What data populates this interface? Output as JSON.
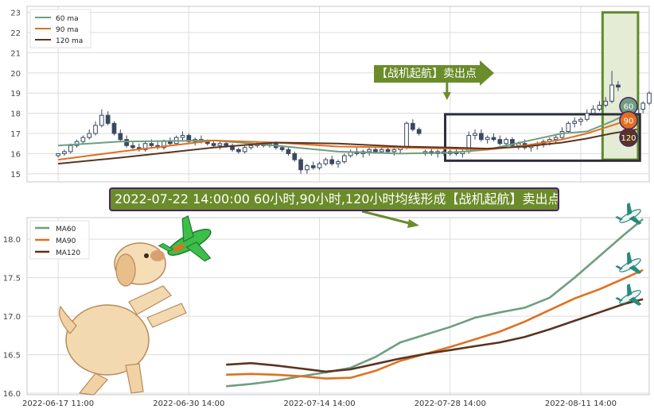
{
  "chart_data": [
    {
      "type": "candlestick",
      "xlim": [
        0,
        100
      ],
      "ylim": [
        14.6,
        23.3
      ],
      "yticks": [
        "15",
        "16",
        "17",
        "18",
        "19",
        "20",
        "21",
        "22",
        "23"
      ],
      "legend": {
        "placement": "top-left",
        "entries": [
          {
            "label": "60 ma",
            "color": "#6f9e80"
          },
          {
            "label": "90 ma",
            "color": "#e07020"
          },
          {
            "label": "120 ma",
            "color": "#5a3420"
          }
        ]
      },
      "candles": [
        [
          5,
          15.9,
          16.0,
          15.8,
          16.0
        ],
        [
          6,
          16.0,
          16.2,
          15.9,
          16.1
        ],
        [
          7,
          16.1,
          16.5,
          16.0,
          16.4
        ],
        [
          8,
          16.4,
          16.7,
          16.3,
          16.6
        ],
        [
          9,
          16.6,
          16.9,
          16.5,
          16.8
        ],
        [
          10,
          16.8,
          17.2,
          16.7,
          17.0
        ],
        [
          11,
          17.0,
          17.6,
          16.9,
          17.4
        ],
        [
          12,
          17.4,
          18.2,
          17.3,
          17.9
        ],
        [
          13,
          17.9,
          18.1,
          17.4,
          17.5
        ],
        [
          14,
          17.5,
          17.6,
          16.9,
          17.0
        ],
        [
          15,
          17.0,
          17.2,
          16.6,
          16.7
        ],
        [
          16,
          16.7,
          16.9,
          16.3,
          16.4
        ],
        [
          17,
          16.4,
          16.6,
          16.2,
          16.3
        ],
        [
          18,
          16.3,
          16.5,
          16.1,
          16.2
        ],
        [
          19,
          16.2,
          16.6,
          16.1,
          16.5
        ],
        [
          20,
          16.5,
          16.7,
          16.3,
          16.4
        ],
        [
          21,
          16.4,
          16.6,
          16.2,
          16.3
        ],
        [
          22,
          16.3,
          16.7,
          16.2,
          16.6
        ],
        [
          23,
          16.6,
          16.8,
          16.4,
          16.5
        ],
        [
          24,
          16.5,
          16.9,
          16.4,
          16.8
        ],
        [
          25,
          16.8,
          17.1,
          16.6,
          16.9
        ],
        [
          26,
          16.9,
          17.0,
          16.5,
          16.6
        ],
        [
          27,
          16.6,
          16.8,
          16.4,
          16.7
        ],
        [
          28,
          16.7,
          16.9,
          16.5,
          16.6
        ],
        [
          29,
          16.6,
          16.7,
          16.4,
          16.5
        ],
        [
          30,
          16.5,
          16.6,
          16.3,
          16.4
        ],
        [
          31,
          16.4,
          16.6,
          16.2,
          16.5
        ],
        [
          32,
          16.5,
          16.6,
          16.3,
          16.4
        ],
        [
          33,
          16.4,
          16.5,
          16.1,
          16.2
        ],
        [
          34,
          16.2,
          16.3,
          16.0,
          16.1
        ],
        [
          35,
          16.1,
          16.4,
          16.0,
          16.3
        ],
        [
          36,
          16.3,
          16.5,
          16.2,
          16.4
        ],
        [
          37,
          16.4,
          16.6,
          16.3,
          16.5
        ],
        [
          38,
          16.5,
          16.6,
          16.3,
          16.4
        ],
        [
          39,
          16.4,
          16.6,
          16.3,
          16.5
        ],
        [
          40,
          16.5,
          16.6,
          16.2,
          16.3
        ],
        [
          41,
          16.3,
          16.4,
          16.1,
          16.2
        ],
        [
          42,
          16.2,
          16.3,
          15.9,
          16.0
        ],
        [
          43,
          16.0,
          16.1,
          15.6,
          15.7
        ],
        [
          44,
          15.7,
          15.8,
          15.0,
          15.2
        ],
        [
          45,
          15.2,
          15.5,
          15.0,
          15.4
        ],
        [
          46,
          15.4,
          15.6,
          15.2,
          15.3
        ],
        [
          47,
          15.3,
          15.6,
          15.2,
          15.5
        ],
        [
          48,
          15.5,
          15.8,
          15.4,
          15.7
        ],
        [
          49,
          15.7,
          15.9,
          15.4,
          15.5
        ],
        [
          50,
          15.5,
          15.7,
          15.3,
          15.6
        ],
        [
          51,
          15.6,
          16.0,
          15.5,
          15.9
        ],
        [
          52,
          15.9,
          16.2,
          15.8,
          16.1
        ],
        [
          53,
          16.1,
          16.3,
          15.9,
          16.0
        ],
        [
          54,
          16.0,
          16.2,
          15.8,
          16.1
        ],
        [
          55,
          16.1,
          16.3,
          15.9,
          16.2
        ],
        [
          56,
          16.2,
          16.3,
          16.0,
          16.1
        ],
        [
          57,
          16.1,
          16.3,
          16.0,
          16.2
        ],
        [
          58,
          16.2,
          16.4,
          16.0,
          16.1
        ],
        [
          59,
          16.1,
          16.3,
          15.9,
          16.2
        ],
        [
          60,
          16.2,
          16.4,
          16.0,
          16.3
        ],
        [
          61,
          16.3,
          17.6,
          16.2,
          17.5
        ],
        [
          62,
          17.5,
          17.7,
          17.1,
          17.2
        ],
        [
          63,
          17.2,
          17.3,
          16.9,
          17.0
        ],
        [
          64,
          16.0,
          16.2,
          15.9,
          16.1
        ],
        [
          65,
          16.1,
          16.3,
          15.9,
          16.0
        ],
        [
          66,
          16.0,
          16.2,
          15.8,
          16.1
        ],
        [
          67,
          16.1,
          16.3,
          15.9,
          16.0
        ],
        [
          68,
          16.0,
          16.2,
          15.9,
          16.1
        ],
        [
          69,
          16.1,
          16.3,
          15.9,
          16.0
        ],
        [
          70,
          16.0,
          16.2,
          15.8,
          16.1
        ],
        [
          71,
          16.1,
          17.1,
          16.0,
          16.9
        ],
        [
          72,
          16.9,
          17.2,
          16.7,
          17.0
        ],
        [
          73,
          17.0,
          17.2,
          16.6,
          16.7
        ],
        [
          74,
          16.7,
          16.9,
          16.5,
          16.8
        ],
        [
          75,
          16.8,
          17.0,
          16.6,
          16.7
        ],
        [
          76,
          16.7,
          16.9,
          16.4,
          16.5
        ],
        [
          77,
          16.5,
          16.8,
          16.3,
          16.7
        ],
        [
          78,
          16.7,
          16.8,
          16.3,
          16.4
        ],
        [
          79,
          16.4,
          16.6,
          16.2,
          16.5
        ],
        [
          80,
          16.5,
          16.7,
          16.2,
          16.3
        ],
        [
          81,
          16.3,
          16.5,
          16.1,
          16.4
        ],
        [
          82,
          16.4,
          16.6,
          16.2,
          16.5
        ],
        [
          83,
          16.5,
          16.7,
          16.3,
          16.6
        ],
        [
          84,
          16.6,
          16.8,
          16.4,
          16.7
        ],
        [
          85,
          16.7,
          16.9,
          16.5,
          16.8
        ],
        [
          86,
          16.8,
          17.3,
          16.7,
          17.1
        ],
        [
          87,
          17.1,
          17.6,
          17.0,
          17.5
        ],
        [
          88,
          17.5,
          17.8,
          17.3,
          17.6
        ],
        [
          89,
          17.6,
          17.8,
          17.4,
          17.7
        ],
        [
          90,
          17.7,
          18.2,
          17.6,
          18.0
        ],
        [
          91,
          18.0,
          18.4,
          17.9,
          18.2
        ],
        [
          92,
          18.2,
          18.6,
          18.1,
          18.4
        ],
        [
          93,
          18.4,
          18.8,
          18.3,
          18.6
        ],
        [
          94,
          18.6,
          20.1,
          18.5,
          19.4
        ],
        [
          95,
          19.4,
          19.6,
          19.1,
          19.3
        ],
        [
          96,
          17.8,
          18.4,
          17.6,
          18.3
        ],
        [
          97,
          18.3,
          18.5,
          17.9,
          18.0
        ],
        [
          98,
          18.0,
          18.4,
          17.8,
          18.2
        ],
        [
          99,
          18.2,
          18.6,
          18.0,
          18.5
        ],
        [
          100,
          18.5,
          19.1,
          18.4,
          19.0
        ]
      ],
      "ma60": [
        [
          5,
          16.4
        ],
        [
          15,
          16.6
        ],
        [
          30,
          16.65
        ],
        [
          40,
          16.4
        ],
        [
          50,
          16.1
        ],
        [
          60,
          16.0
        ],
        [
          68,
          16.05
        ],
        [
          74,
          16.2
        ],
        [
          80,
          16.6
        ],
        [
          86,
          17.0
        ],
        [
          90,
          17.1
        ],
        [
          94,
          17.6
        ],
        [
          98,
          18.2
        ]
      ],
      "ma90": [
        [
          5,
          15.7
        ],
        [
          15,
          16.1
        ],
        [
          30,
          16.65
        ],
        [
          40,
          16.55
        ],
        [
          50,
          16.35
        ],
        [
          60,
          16.3
        ],
        [
          68,
          16.25
        ],
        [
          74,
          16.2
        ],
        [
          80,
          16.4
        ],
        [
          86,
          16.7
        ],
        [
          90,
          17.0
        ],
        [
          94,
          17.4
        ],
        [
          98,
          17.8
        ]
      ],
      "ma120": [
        [
          5,
          15.5
        ],
        [
          15,
          15.8
        ],
        [
          30,
          16.3
        ],
        [
          40,
          16.55
        ],
        [
          50,
          16.5
        ],
        [
          60,
          16.35
        ],
        [
          68,
          16.3
        ],
        [
          74,
          16.25
        ],
        [
          80,
          16.35
        ],
        [
          86,
          16.55
        ],
        [
          90,
          16.75
        ],
        [
          94,
          17.0
        ],
        [
          98,
          17.2
        ]
      ],
      "end_badges": [
        "60",
        "90",
        "120"
      ],
      "annotation": "【战机起航】卖出点"
    },
    {
      "type": "line",
      "xlim": [
        0,
        100
      ],
      "ylim": [
        15.98,
        18.28
      ],
      "yticks": [
        "16.0",
        "16.5",
        "17.0",
        "17.5",
        "18.0"
      ],
      "xticks": [
        {
          "x": 5,
          "label": "2022-06-17 11:00"
        },
        {
          "x": 26,
          "label": "2022-06-30 14:00"
        },
        {
          "x": 47,
          "label": "2022-07-14 14:00"
        },
        {
          "x": 68,
          "label": "2022-07-28 14:00"
        },
        {
          "x": 89,
          "label": "2022-08-11 14:00"
        }
      ],
      "legend": {
        "placement": "top-left",
        "entries": [
          {
            "label": "MA60",
            "color": "#6f9e80"
          },
          {
            "label": "MA90",
            "color": "#e07020"
          },
          {
            "label": "MA120",
            "color": "#5a3420"
          }
        ]
      },
      "series": [
        {
          "name": "MA60",
          "color": "#6f9e80",
          "points": [
            [
              32,
              16.09
            ],
            [
              36,
              16.12
            ],
            [
              40,
              16.16
            ],
            [
              44,
              16.22
            ],
            [
              48,
              16.27
            ],
            [
              52,
              16.33
            ],
            [
              56,
              16.47
            ],
            [
              60,
              16.66
            ],
            [
              64,
              16.76
            ],
            [
              68,
              16.86
            ],
            [
              72,
              16.98
            ],
            [
              76,
              17.05
            ],
            [
              80,
              17.11
            ],
            [
              84,
              17.24
            ],
            [
              88,
              17.5
            ],
            [
              92,
              17.78
            ],
            [
              96,
              18.06
            ],
            [
              99,
              18.26
            ]
          ]
        },
        {
          "name": "MA90",
          "color": "#e07020",
          "points": [
            [
              32,
              16.24
            ],
            [
              36,
              16.25
            ],
            [
              40,
              16.24
            ],
            [
              44,
              16.22
            ],
            [
              48,
              16.19
            ],
            [
              52,
              16.2
            ],
            [
              56,
              16.29
            ],
            [
              60,
              16.42
            ],
            [
              64,
              16.51
            ],
            [
              68,
              16.6
            ],
            [
              72,
              16.7
            ],
            [
              76,
              16.8
            ],
            [
              80,
              16.93
            ],
            [
              84,
              17.08
            ],
            [
              88,
              17.23
            ],
            [
              92,
              17.35
            ],
            [
              96,
              17.49
            ],
            [
              99,
              17.6
            ]
          ]
        },
        {
          "name": "MA120",
          "color": "#5a3420",
          "points": [
            [
              32,
              16.37
            ],
            [
              36,
              16.39
            ],
            [
              40,
              16.36
            ],
            [
              44,
              16.32
            ],
            [
              48,
              16.28
            ],
            [
              52,
              16.31
            ],
            [
              56,
              16.38
            ],
            [
              60,
              16.45
            ],
            [
              64,
              16.51
            ],
            [
              68,
              16.56
            ],
            [
              72,
              16.61
            ],
            [
              76,
              16.66
            ],
            [
              80,
              16.73
            ],
            [
              84,
              16.83
            ],
            [
              88,
              16.94
            ],
            [
              92,
              17.05
            ],
            [
              96,
              17.16
            ],
            [
              99,
              17.22
            ]
          ]
        }
      ]
    }
  ],
  "banner_text": "2022-07-22 14:00:00 60小时,90小时,120小时均线形成【战机起航】卖出点",
  "colors": {
    "ma60": "#6f9e80",
    "ma90": "#e07020",
    "ma120": "#5a3420",
    "banner_bg": "#6a8c2a",
    "banner_border": "#4b2368",
    "highlight": "#5e8c2c",
    "box": "#2d2f3a",
    "candle": "#3a4860"
  }
}
